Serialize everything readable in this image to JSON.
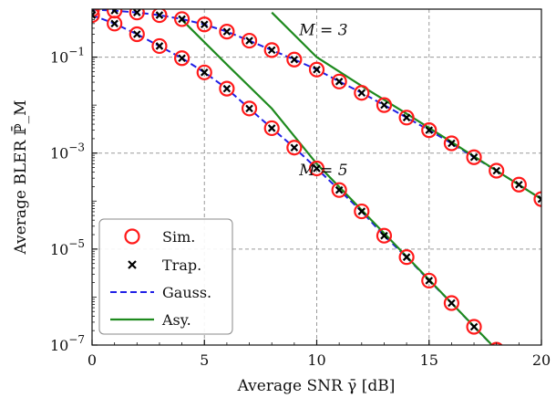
{
  "chart_data": {
    "type": "line",
    "xlabel": "Average SNR γ̄ [dB]",
    "ylabel": "Average BLER ℙ̄_M",
    "xlim": [
      0,
      20
    ],
    "ylim": [
      1e-07,
      1
    ],
    "yscale": "log",
    "grid": true,
    "legend_position": "bottom-left",
    "x_ticks": [
      0,
      5,
      10,
      15,
      20
    ],
    "y_ticks": [
      {
        "value": 0.1,
        "label": "10^{-1}"
      },
      {
        "value": 0.001,
        "label": "10^{-3}"
      },
      {
        "value": 1e-05,
        "label": "10^{-5}"
      },
      {
        "value": 1e-07,
        "label": "10^{-7}"
      }
    ],
    "annotations": [
      {
        "text": "M = 3",
        "x": 10.3,
        "y": 0.37
      },
      {
        "text": "M = 5",
        "x": 10.3,
        "y": 0.00045
      }
    ],
    "legend": [
      "Sim.",
      "Trap.",
      "Gauss.",
      "Asy."
    ],
    "colors": {
      "sim": "#ff1a1a",
      "trap": "#000000",
      "gauss": "#1f1fe6",
      "asy": "#1e8a1e"
    },
    "series": [
      {
        "name": "Sim.",
        "group": "M = 3",
        "x": [
          0,
          1,
          2,
          3,
          4,
          5,
          6,
          7,
          8,
          9,
          10,
          11,
          12,
          13,
          14,
          15,
          16,
          17,
          18,
          19,
          20
        ],
        "y": [
          0.98,
          0.93,
          0.85,
          0.75,
          0.62,
          0.48,
          0.34,
          0.22,
          0.14,
          0.089,
          0.055,
          0.031,
          0.018,
          0.01,
          0.0055,
          0.003,
          0.0016,
          0.00082,
          0.00043,
          0.00022,
          0.00011
        ]
      },
      {
        "name": "Trap.",
        "group": "M = 3",
        "x": [
          0,
          1,
          2,
          3,
          4,
          5,
          6,
          7,
          8,
          9,
          10,
          11,
          12,
          13,
          14,
          15,
          16,
          17,
          18,
          19,
          20
        ],
        "y": [
          0.98,
          0.93,
          0.85,
          0.75,
          0.62,
          0.48,
          0.34,
          0.22,
          0.14,
          0.089,
          0.055,
          0.031,
          0.018,
          0.01,
          0.0055,
          0.003,
          0.0016,
          0.00082,
          0.00043,
          0.00022,
          0.00011
        ]
      },
      {
        "name": "Gauss.",
        "group": "M = 3",
        "x": [
          0,
          1,
          2,
          3,
          4,
          5,
          6,
          7,
          8,
          9,
          10,
          11,
          12,
          13,
          14,
          15,
          16,
          17,
          18,
          19,
          20
        ],
        "y": [
          0.98,
          0.93,
          0.85,
          0.75,
          0.62,
          0.48,
          0.34,
          0.22,
          0.14,
          0.089,
          0.055,
          0.031,
          0.018,
          0.01,
          0.0055,
          0.003,
          0.0016,
          0.00082,
          0.00043,
          0.00022,
          0.00011
        ]
      },
      {
        "name": "Asy.",
        "group": "M = 3",
        "x": [
          8,
          10,
          12,
          14,
          16,
          18,
          20
        ],
        "y": [
          0.85,
          0.1,
          0.025,
          0.0066,
          0.0017,
          0.00043,
          0.00011
        ]
      },
      {
        "name": "Sim.",
        "group": "M = 5",
        "x": [
          0,
          1,
          2,
          3,
          4,
          5,
          6,
          7,
          8,
          9,
          10,
          11,
          12,
          13,
          14,
          15,
          16,
          17,
          18
        ],
        "y": [
          0.75,
          0.5,
          0.3,
          0.17,
          0.095,
          0.048,
          0.022,
          0.0085,
          0.0033,
          0.0013,
          0.00048,
          0.00017,
          6.1e-05,
          1.9e-05,
          6.8e-06,
          2.2e-06,
          7.5e-07,
          2.4e-07,
          8e-08
        ]
      },
      {
        "name": "Trap.",
        "group": "M = 5",
        "x": [
          0,
          1,
          2,
          3,
          4,
          5,
          6,
          7,
          8,
          9,
          10,
          11,
          12,
          13,
          14,
          15,
          16,
          17,
          18
        ],
        "y": [
          0.75,
          0.5,
          0.3,
          0.17,
          0.095,
          0.048,
          0.022,
          0.0085,
          0.0033,
          0.0013,
          0.00048,
          0.00017,
          6.1e-05,
          1.9e-05,
          6.8e-06,
          2.2e-06,
          7.5e-07,
          2.4e-07,
          8e-08
        ]
      },
      {
        "name": "Gauss.",
        "group": "M = 5",
        "x": [
          0,
          1,
          2,
          3,
          4,
          5,
          6,
          7,
          8,
          9,
          10,
          11,
          12,
          13,
          14,
          15,
          16,
          17,
          18
        ],
        "y": [
          0.75,
          0.5,
          0.3,
          0.17,
          0.095,
          0.048,
          0.022,
          0.0085,
          0.0033,
          0.0013,
          0.00048,
          0.00017,
          6.1e-05,
          1.9e-05,
          6.8e-06,
          2.2e-06,
          7.5e-07,
          2.4e-07,
          8e-08
        ]
      },
      {
        "name": "Asy.",
        "group": "M = 5",
        "x": [
          4,
          6,
          8,
          10,
          12,
          14,
          16,
          18
        ],
        "y": [
          0.6,
          0.07,
          0.0085,
          0.0006,
          6.5e-05,
          7e-06,
          7.5e-07,
          8e-08
        ]
      }
    ]
  }
}
